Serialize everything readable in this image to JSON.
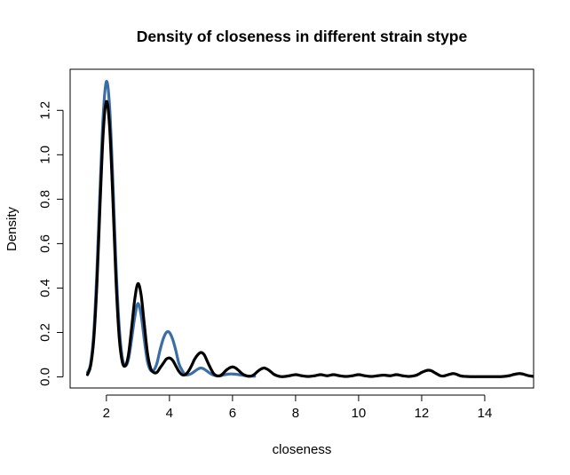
{
  "chart_data": {
    "type": "line",
    "title": "Density of closeness in different strain stype",
    "xlabel": "closeness",
    "ylabel": "Density",
    "xlim": [
      0.85,
      15.55
    ],
    "ylim": [
      -0.05,
      1.385
    ],
    "x_ticks": [
      2,
      4,
      6,
      8,
      10,
      12,
      14
    ],
    "x_tick_labels": [
      "2",
      "4",
      "6",
      "8",
      "10",
      "12",
      "14"
    ],
    "y_ticks": [
      0.0,
      0.2,
      0.4,
      0.6,
      0.8,
      1.0,
      1.2
    ],
    "y_tick_labels": [
      "0.0",
      "0.2",
      "0.4",
      "0.6",
      "0.8",
      "1.0",
      "1.2"
    ],
    "grid": false,
    "legend": "none",
    "series": [
      {
        "color": "#3A6EA5",
        "x": [
          1.4,
          1.5,
          1.6,
          1.7,
          1.8,
          1.9,
          2.0,
          2.1,
          2.2,
          2.3,
          2.4,
          2.5,
          2.6,
          2.7,
          2.8,
          2.9,
          3.0,
          3.1,
          3.2,
          3.3,
          3.4,
          3.5,
          3.6,
          3.7,
          3.8,
          3.9,
          4.0,
          4.1,
          4.2,
          4.3,
          4.4,
          4.5,
          4.6,
          4.7,
          4.8,
          4.9,
          5.0,
          5.1,
          5.2,
          5.3,
          5.4,
          5.5,
          5.6,
          5.7,
          5.8,
          5.9,
          6.0,
          6.1,
          6.2,
          6.3,
          6.4,
          6.5,
          6.7
        ],
        "y": [
          0.02,
          0.06,
          0.2,
          0.48,
          0.85,
          1.18,
          1.33,
          1.22,
          0.9,
          0.52,
          0.24,
          0.09,
          0.05,
          0.08,
          0.17,
          0.27,
          0.33,
          0.28,
          0.17,
          0.07,
          0.03,
          0.03,
          0.06,
          0.12,
          0.17,
          0.2,
          0.2,
          0.17,
          0.12,
          0.06,
          0.03,
          0.01,
          0.01,
          0.015,
          0.025,
          0.035,
          0.04,
          0.035,
          0.025,
          0.015,
          0.008,
          0.005,
          0.005,
          0.008,
          0.011,
          0.013,
          0.013,
          0.012,
          0.01,
          0.008,
          0.006,
          0.004,
          0.003
        ]
      },
      {
        "color": "#000000",
        "x": [
          1.4,
          1.5,
          1.6,
          1.7,
          1.8,
          1.9,
          2.0,
          2.1,
          2.2,
          2.3,
          2.4,
          2.5,
          2.6,
          2.7,
          2.8,
          2.9,
          3.0,
          3.1,
          3.2,
          3.3,
          3.4,
          3.5,
          3.6,
          3.7,
          3.8,
          3.9,
          4.0,
          4.1,
          4.2,
          4.3,
          4.4,
          4.5,
          4.6,
          4.7,
          4.8,
          4.9,
          5.0,
          5.1,
          5.2,
          5.3,
          5.4,
          5.5,
          5.6,
          5.7,
          5.8,
          5.9,
          6.0,
          6.1,
          6.2,
          6.3,
          6.4,
          6.5,
          6.6,
          6.7,
          6.8,
          6.9,
          7.0,
          7.1,
          7.2,
          7.3,
          7.4,
          7.5,
          7.6,
          7.8,
          8.0,
          8.2,
          8.4,
          8.6,
          8.8,
          9.0,
          9.2,
          9.4,
          9.6,
          9.8,
          10.0,
          10.2,
          10.4,
          10.6,
          10.8,
          11.0,
          11.2,
          11.4,
          11.6,
          11.8,
          11.9,
          12.0,
          12.1,
          12.2,
          12.3,
          12.4,
          12.5,
          12.6,
          12.7,
          12.8,
          12.9,
          13.0,
          13.1,
          13.2,
          13.3,
          13.4,
          13.6,
          13.8,
          14.0,
          14.2,
          14.4,
          14.6,
          14.8,
          14.9,
          15.0,
          15.1,
          15.2,
          15.3,
          15.4,
          15.55
        ],
        "y": [
          0.01,
          0.05,
          0.17,
          0.42,
          0.78,
          1.1,
          1.24,
          1.13,
          0.82,
          0.45,
          0.19,
          0.07,
          0.05,
          0.1,
          0.22,
          0.35,
          0.42,
          0.37,
          0.24,
          0.11,
          0.04,
          0.02,
          0.02,
          0.04,
          0.06,
          0.08,
          0.085,
          0.075,
          0.05,
          0.025,
          0.01,
          0.01,
          0.025,
          0.05,
          0.08,
          0.1,
          0.11,
          0.1,
          0.07,
          0.04,
          0.015,
          0.005,
          0.005,
          0.015,
          0.03,
          0.04,
          0.045,
          0.04,
          0.028,
          0.015,
          0.007,
          0.003,
          0.004,
          0.012,
          0.025,
          0.035,
          0.04,
          0.035,
          0.025,
          0.013,
          0.006,
          0.002,
          0.001,
          0.005,
          0.01,
          0.005,
          0.002,
          0.005,
          0.01,
          0.005,
          0.01,
          0.005,
          0.002,
          0.005,
          0.01,
          0.005,
          0.002,
          0.005,
          0.008,
          0.005,
          0.01,
          0.005,
          0.002,
          0.006,
          0.012,
          0.02,
          0.026,
          0.03,
          0.028,
          0.02,
          0.012,
          0.005,
          0.004,
          0.008,
          0.012,
          0.015,
          0.012,
          0.006,
          0.003,
          0.002,
          0.001,
          0.001,
          0.001,
          0.001,
          0.001,
          0.002,
          0.006,
          0.01,
          0.013,
          0.015,
          0.013,
          0.009,
          0.005,
          0.002
        ]
      }
    ]
  }
}
